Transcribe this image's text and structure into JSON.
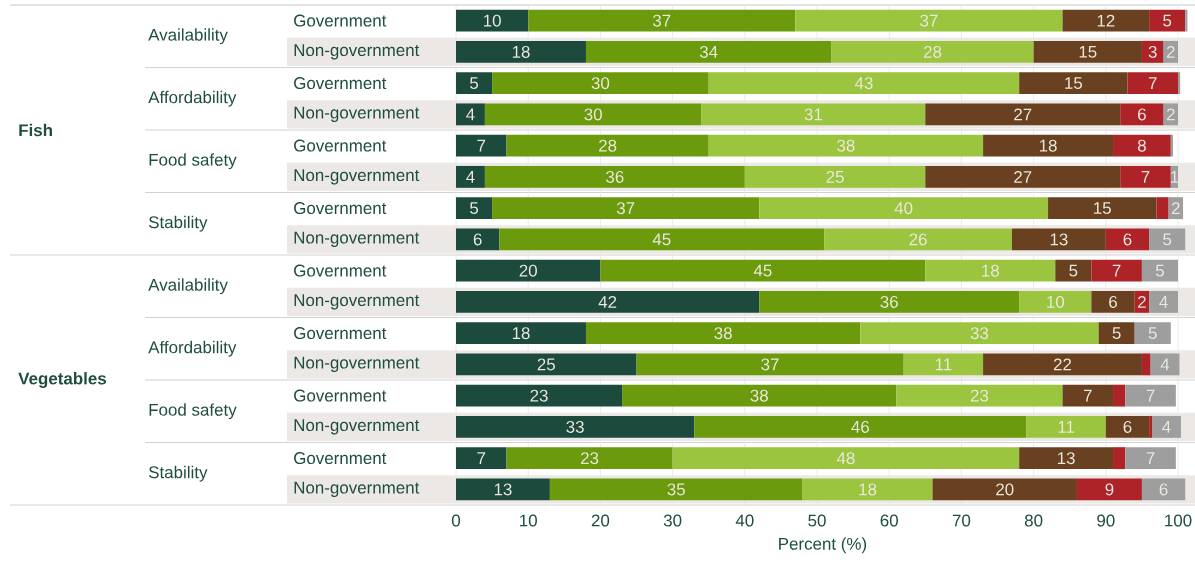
{
  "chart_data": {
    "type": "bar",
    "orientation": "horizontal",
    "stacked": true,
    "xlabel": "Percent (%)",
    "categories": [
      "Government",
      "Non-government",
      "Government",
      "Non-government",
      "Government",
      "Non-government",
      "Government",
      "Non-government",
      "Government",
      "Non-government",
      "Government",
      "Non-government",
      "Government",
      "Non-government",
      "Government",
      "Non-government"
    ],
    "annotations": [
      "Fish",
      "Availability",
      "Affordability",
      "Food safety",
      "Stability",
      "Vegetables",
      "Availability",
      "Affordability",
      "Food safety",
      "Stability"
    ],
    "xlim": [
      0,
      101.5
    ],
    "xticks": [
      0,
      10,
      20,
      30,
      40,
      50,
      60,
      70,
      80,
      90,
      100
    ],
    "grid": "x",
    "series": [
      {
        "color": "#1c4a3c",
        "values": [
          10,
          18,
          5,
          4,
          7,
          4,
          5,
          6,
          20,
          42,
          18,
          25,
          23,
          33,
          7,
          13
        ],
        "value_labels": [
          "10",
          "18",
          "5",
          "4",
          "7",
          "4",
          "5",
          "6",
          "20",
          "42",
          "18",
          "25",
          "23",
          "33",
          "7",
          "13"
        ]
      },
      {
        "color": "#6b9a0c",
        "values": [
          37,
          34,
          30,
          30,
          28,
          36,
          37,
          45,
          45,
          36,
          38,
          37,
          38,
          46,
          23,
          35
        ],
        "value_labels": [
          "37",
          "34",
          "30",
          "30",
          "28",
          "36",
          "37",
          "45",
          "45",
          "36",
          "38",
          "37",
          "38",
          "46",
          "23",
          "35"
        ]
      },
      {
        "color": "#9bc43f",
        "values": [
          37,
          28,
          43,
          31,
          38,
          25,
          40,
          26,
          18,
          10,
          33,
          11,
          23,
          11,
          48,
          18
        ],
        "value_labels": [
          "37",
          "28",
          "43",
          "31",
          "38",
          "25",
          "40",
          "26",
          "18",
          "10",
          "33",
          "11",
          "23",
          "11",
          "48",
          "18"
        ]
      },
      {
        "color": "#6a4120",
        "values": [
          12,
          15,
          15,
          27,
          18,
          27,
          15,
          13,
          5,
          6,
          5,
          22,
          7,
          6,
          13,
          20
        ],
        "value_labels": [
          "12",
          "15",
          "15",
          "27",
          "18",
          "27",
          "15",
          "13",
          "5",
          "6",
          "5",
          "22",
          "7",
          "6",
          "13",
          "20"
        ]
      },
      {
        "color": "#ae2328",
        "values": [
          5,
          3,
          7,
          6,
          8,
          7,
          1.7,
          6,
          7,
          2,
          null,
          1.2,
          1.7,
          0.4,
          1.7,
          9
        ],
        "value_labels": [
          "5",
          "3",
          "7",
          "6",
          "8",
          "7",
          null,
          "6",
          "7",
          "2",
          null,
          null,
          null,
          null,
          null,
          "9"
        ]
      },
      {
        "color": "#9e9e9e",
        "values": [
          0.3,
          2,
          0.3,
          2,
          0.3,
          1,
          2,
          5,
          5,
          4,
          5,
          4,
          7,
          4,
          7,
          6
        ],
        "value_labels": [
          null,
          "2",
          null,
          "2",
          null,
          "1",
          "2",
          "5",
          "5",
          "4",
          "5",
          "4",
          "7",
          "4",
          "7",
          "6"
        ]
      }
    ]
  }
}
